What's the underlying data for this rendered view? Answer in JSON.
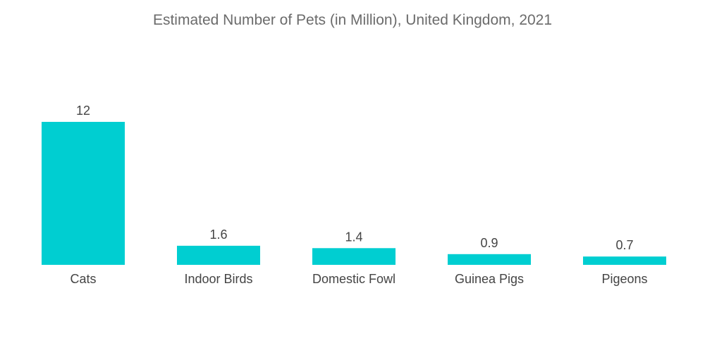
{
  "chart_data": {
    "type": "bar",
    "title": "Estimated Number of Pets (in Million), United Kingdom, 2021",
    "categories": [
      "Cats",
      "Indoor Birds",
      "Domestic Fowl",
      "Guinea Pigs",
      "Pigeons"
    ],
    "values": [
      12,
      1.6,
      1.4,
      0.9,
      0.7
    ],
    "value_labels": [
      "12",
      "1.6",
      "1.4",
      "0.9",
      "0.7"
    ],
    "xlabel": "",
    "ylabel": "",
    "ylim": [
      0,
      12
    ],
    "grid": false,
    "legend": "none",
    "bar_color": "#00CED1"
  }
}
